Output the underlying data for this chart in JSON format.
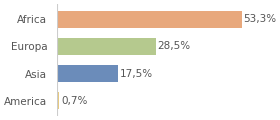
{
  "categories": [
    "America",
    "Asia",
    "Europa",
    "Africa"
  ],
  "values": [
    0.7,
    17.5,
    28.5,
    53.3
  ],
  "labels": [
    "0,7%",
    "17,5%",
    "28,5%",
    "53,3%"
  ],
  "bar_colors": [
    "#e8c97c",
    "#6b8cba",
    "#b5c98e",
    "#e8a87c"
  ],
  "background_color": "#ffffff",
  "xlim": [
    0,
    60
  ],
  "bar_height": 0.62,
  "label_fontsize": 7.5,
  "tick_fontsize": 7.5
}
